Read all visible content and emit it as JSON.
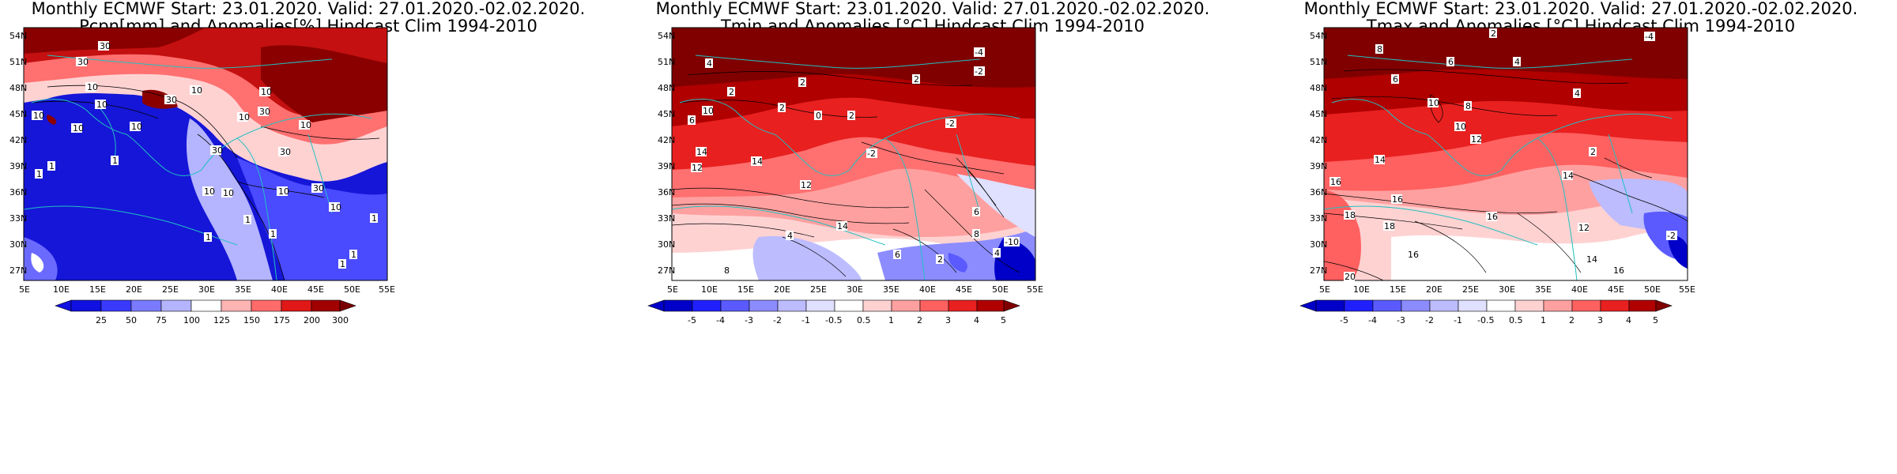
{
  "panels": [
    {
      "title_line1": "Monthly ECMWF Start: 23.01.2020. Valid: 27.01.2020.-02.02.2020.",
      "title_line2": "Pcpn[mm] and Anomalies[%] Hindcast Clim 1994-2010",
      "colorbar_labels": [
        "25",
        "50",
        "75",
        "100",
        "125",
        "150",
        "175",
        "200",
        "300"
      ],
      "colorbar_colors": [
        "#1010e0",
        "#3a3aff",
        "#7a7aff",
        "#b4b4ff",
        "#ffffff",
        "#ffb4b4",
        "#ff6a6a",
        "#e01818",
        "#a00000",
        "#7a0000"
      ],
      "contour_labels": [
        "30",
        "30",
        "10",
        "10",
        "10",
        "30",
        "30",
        "10",
        "10",
        "10",
        "10",
        "30",
        "10",
        "10",
        "30",
        "30",
        "10",
        "10",
        "10",
        "1",
        "1",
        "1",
        "1",
        "1",
        "1",
        "1",
        "1",
        "1",
        "10"
      ]
    },
    {
      "title_line1": "Monthly ECMWF Start: 23.01.2020. Valid: 27.01.2020.-02.02.2020.",
      "title_line2": "Tmin and Anomalies [°C] Hindcast Clim 1994-2010",
      "colorbar_labels": [
        "-5",
        "-4",
        "-3",
        "-2",
        "-1",
        "-0.5",
        "0.5",
        "1",
        "2",
        "3",
        "4",
        "5"
      ],
      "colorbar_colors": [
        "#0000c8",
        "#2020ff",
        "#5a5aff",
        "#8c8cff",
        "#bcbcff",
        "#e0e0ff",
        "#ffffff",
        "#ffd2d2",
        "#ffa0a0",
        "#ff6060",
        "#e82020",
        "#b00000",
        "#800000"
      ],
      "contour_labels": [
        "-4",
        "-2",
        "4",
        "2",
        "2",
        "2",
        "2",
        "0",
        "-2",
        "6",
        "10",
        "2",
        "14",
        "12",
        "14",
        "12",
        "-2",
        "6",
        "8",
        "4",
        "-10",
        "2",
        "4",
        "8",
        "14",
        "6"
      ]
    },
    {
      "title_line1": "Monthly ECMWF Start: 23.01.2020. Valid: 27.01.2020.-02.02.2020.",
      "title_line2": "Tmax and Anomalies [°C] Hindcast Clim 1994-2010",
      "colorbar_labels": [
        "-5",
        "-4",
        "-3",
        "-2",
        "-1",
        "-0.5",
        "0.5",
        "1",
        "2",
        "3",
        "4",
        "5"
      ],
      "colorbar_colors": [
        "#0000c8",
        "#2020ff",
        "#5a5aff",
        "#8c8cff",
        "#bcbcff",
        "#e0e0ff",
        "#ffffff",
        "#ffd2d2",
        "#ffa0a0",
        "#ff6060",
        "#e82020",
        "#b00000",
        "#800000"
      ],
      "contour_labels": [
        "-4",
        "2",
        "8",
        "6",
        "6",
        "4",
        "4",
        "10",
        "8",
        "10",
        "12",
        "14",
        "16",
        "16",
        "18",
        "18",
        "16",
        "16",
        "12",
        "14",
        "14",
        "16",
        "-2",
        "2",
        "20"
      ]
    }
  ],
  "axes": {
    "lat_labels": [
      "54N",
      "51N",
      "48N",
      "45N",
      "42N",
      "39N",
      "36N",
      "33N",
      "30N",
      "27N"
    ],
    "lon_labels": [
      "5E",
      "10E",
      "15E",
      "20E",
      "25E",
      "30E",
      "35E",
      "40E",
      "45E",
      "50E",
      "55E"
    ]
  }
}
